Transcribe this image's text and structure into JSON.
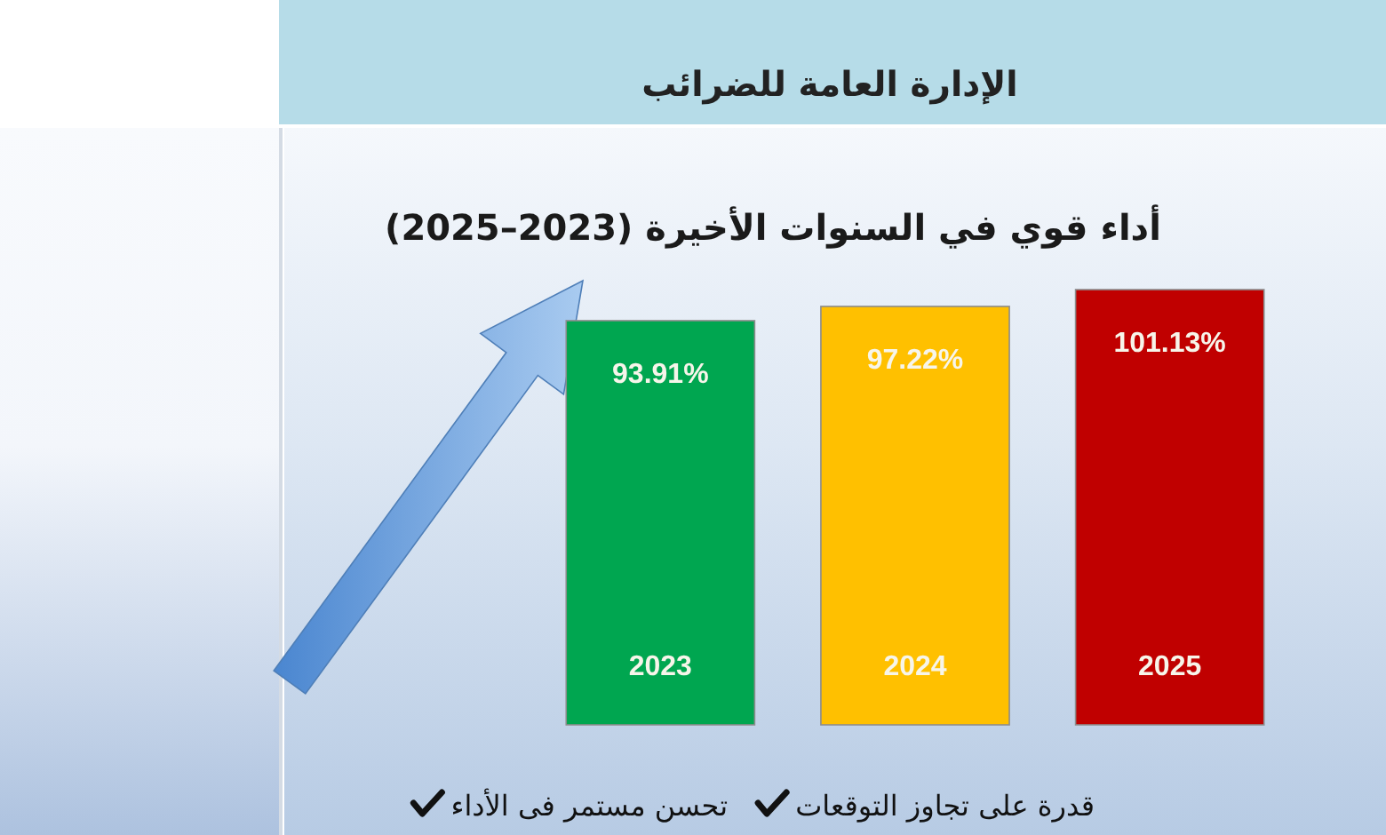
{
  "chart_data": {
    "type": "bar",
    "title": "أداء قوي في السنوات الأخيرة (2023–2025)",
    "categories": [
      "2023",
      "2024",
      "2025"
    ],
    "values": [
      93.91,
      97.22,
      101.13
    ],
    "colors": [
      "#00a650",
      "#ffc000",
      "#c00000"
    ],
    "value_labels": [
      "93.91%",
      "97.22%",
      "101.13%"
    ],
    "annotations": [
      "الإدارة العامة للضرائب",
      "قدرة على تجاوز التوقعات",
      "تحسن مستمر فى الأداء"
    ]
  }
}
